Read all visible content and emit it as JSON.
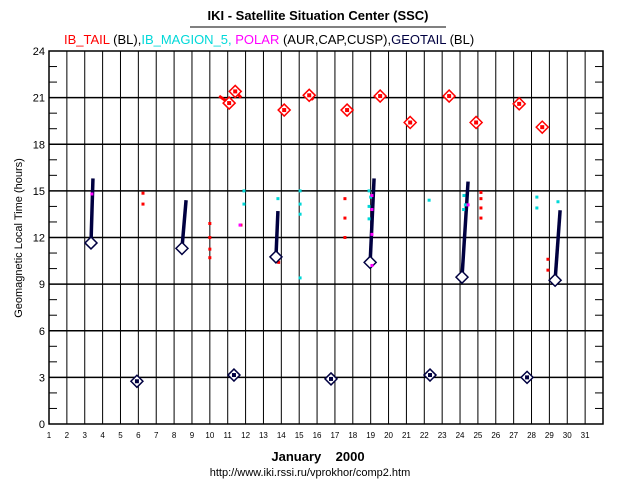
{
  "chart_data": {
    "type": "scatter",
    "title": "IKI - Satellite Situation Center (SSC)",
    "legend": [
      {
        "name": "IB_TAIL",
        "suffix": " (BL),",
        "color": "#ff0000"
      },
      {
        "name": "IB_MAGION_5,",
        "suffix": " ",
        "color": "#00d8d8"
      },
      {
        "name": "POLAR",
        "suffix": " (AUR,CAP,CUSP),",
        "color": "#ff00ff"
      },
      {
        "name": "GEOTAIL",
        "suffix": " (BL)",
        "color": "#000040"
      }
    ],
    "xlabel": "January    2000",
    "ylabel": "Geomagnetic Local Time (hours)",
    "footer": "http://www.iki.rssi.ru/vprokhor/comp2.htm",
    "xlim": [
      1,
      32
    ],
    "ylim": [
      0,
      24
    ],
    "xticks": [
      1,
      2,
      3,
      4,
      5,
      6,
      7,
      8,
      9,
      10,
      11,
      12,
      13,
      14,
      15,
      16,
      17,
      18,
      19,
      20,
      21,
      22,
      23,
      24,
      25,
      26,
      27,
      28,
      29,
      30,
      31
    ],
    "yticks": [
      0,
      3,
      6,
      9,
      12,
      15,
      18,
      21,
      24
    ],
    "series": {
      "geotail": [
        {
          "day": 3.35,
          "hour": 11.65,
          "end_day": 3.46,
          "end_hour": 15.8
        },
        {
          "day": 5.92,
          "hour": 2.75
        },
        {
          "day": 8.44,
          "hour": 11.3,
          "end_day": 8.67,
          "end_hour": 14.4
        },
        {
          "day": 11.35,
          "hour": 3.15
        },
        {
          "day": 13.7,
          "hour": 10.75,
          "end_day": 13.81,
          "end_hour": 13.7
        },
        {
          "day": 16.78,
          "hour": 2.9
        },
        {
          "day": 18.97,
          "hour": 10.4,
          "end_day": 19.19,
          "end_hour": 15.8
        },
        {
          "day": 22.32,
          "hour": 3.15
        },
        {
          "day": 24.11,
          "hour": 9.45,
          "end_day": 24.45,
          "end_hour": 15.6
        },
        {
          "day": 27.75,
          "hour": 3.0
        },
        {
          "day": 29.32,
          "hour": 9.25,
          "end_day": 29.6,
          "end_hour": 13.75
        }
      ],
      "ib_tail_diamonds": [
        {
          "day": 11.08,
          "hour": 20.65,
          "end_day": 10.52,
          "end_hour": 21.1
        },
        {
          "day": 11.42,
          "hour": 21.4,
          "end_day": 11.75,
          "end_hour": 21.0
        },
        {
          "day": 14.16,
          "hour": 20.2
        },
        {
          "day": 15.56,
          "hour": 21.15,
          "end_day": 15.78,
          "end_hour": 20.85
        },
        {
          "day": 17.68,
          "hour": 20.2
        },
        {
          "day": 19.53,
          "hour": 21.1
        },
        {
          "day": 21.21,
          "hour": 19.4
        },
        {
          "day": 23.39,
          "hour": 21.1
        },
        {
          "day": 24.9,
          "hour": 19.4
        },
        {
          "day": 27.31,
          "hour": 20.6,
          "end_day": 27.31,
          "end_hour": 21.0
        },
        {
          "day": 28.6,
          "hour": 19.1
        }
      ],
      "ib_tail_points": [
        [
          6.26,
          14.85
        ],
        [
          6.26,
          14.15
        ],
        [
          10.0,
          12.9
        ],
        [
          10.0,
          12.0
        ],
        [
          10.0,
          11.25
        ],
        [
          10.0,
          10.7
        ],
        [
          11.74,
          12.8
        ],
        [
          13.85,
          10.4
        ],
        [
          17.56,
          14.5
        ],
        [
          17.56,
          13.25
        ],
        [
          17.56,
          12.0
        ],
        [
          25.17,
          14.9
        ],
        [
          25.17,
          14.5
        ],
        [
          25.17,
          13.9
        ],
        [
          25.17,
          13.25
        ],
        [
          28.92,
          10.6
        ],
        [
          28.92,
          9.9
        ]
      ],
      "magion5_points": [
        [
          11.91,
          15.0
        ],
        [
          11.91,
          14.15
        ],
        [
          13.81,
          14.5
        ],
        [
          15.05,
          15.0
        ],
        [
          15.05,
          14.15
        ],
        [
          15.05,
          13.5
        ],
        [
          15.05,
          9.4
        ],
        [
          18.91,
          15.0
        ],
        [
          18.91,
          14.0
        ],
        [
          18.91,
          13.2
        ],
        [
          19.0,
          14.6
        ],
        [
          22.27,
          14.4
        ],
        [
          24.22,
          14.7
        ],
        [
          24.3,
          14.1
        ],
        [
          24.2,
          13.8
        ],
        [
          28.3,
          14.6
        ],
        [
          28.3,
          13.9
        ],
        [
          29.48,
          14.3
        ]
      ],
      "polar_points": [
        [
          3.4,
          14.8
        ],
        [
          11.69,
          12.8
        ],
        [
          19.07,
          14.7
        ],
        [
          19.07,
          13.8
        ],
        [
          19.07,
          12.2
        ],
        [
          19.07,
          10.2
        ],
        [
          24.45,
          14.1
        ]
      ]
    }
  }
}
